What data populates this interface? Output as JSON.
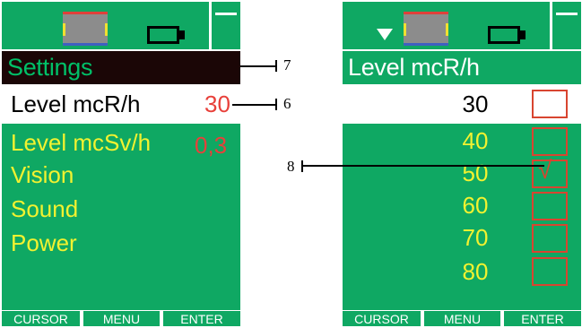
{
  "screens": {
    "left": {
      "header": "Settings",
      "selected_row": {
        "label": "Level mcR/h",
        "value": "30"
      },
      "items": [
        {
          "label": "Level mcSv/h",
          "value": "0,3"
        },
        {
          "label": "Vision"
        },
        {
          "label": "Sound"
        },
        {
          "label": "Power"
        }
      ],
      "softkeys": [
        "CURSOR",
        "MENU",
        "ENTER"
      ]
    },
    "right": {
      "header": "Level mcR/h",
      "options": [
        {
          "value": "30",
          "selected_row": true,
          "checked": false
        },
        {
          "value": "40",
          "checked": false
        },
        {
          "value": "50",
          "checked": true,
          "check_mark": "√"
        },
        {
          "value": "60",
          "checked": false
        },
        {
          "value": "70",
          "checked": false
        },
        {
          "value": "80",
          "checked": false
        }
      ],
      "softkeys": [
        "CURSOR",
        "MENU",
        "ENTER"
      ]
    }
  },
  "callouts": [
    "7",
    "6",
    "8"
  ],
  "icons": [
    "detector-icon",
    "battery-icon",
    "down-arrow-icon"
  ],
  "colors": {
    "screen_green": "#0fa863",
    "header_dark": "#1b0606",
    "menu_yellow": "#f2f230",
    "value_red": "#e8403a",
    "checkbox_red": "#d84530"
  }
}
